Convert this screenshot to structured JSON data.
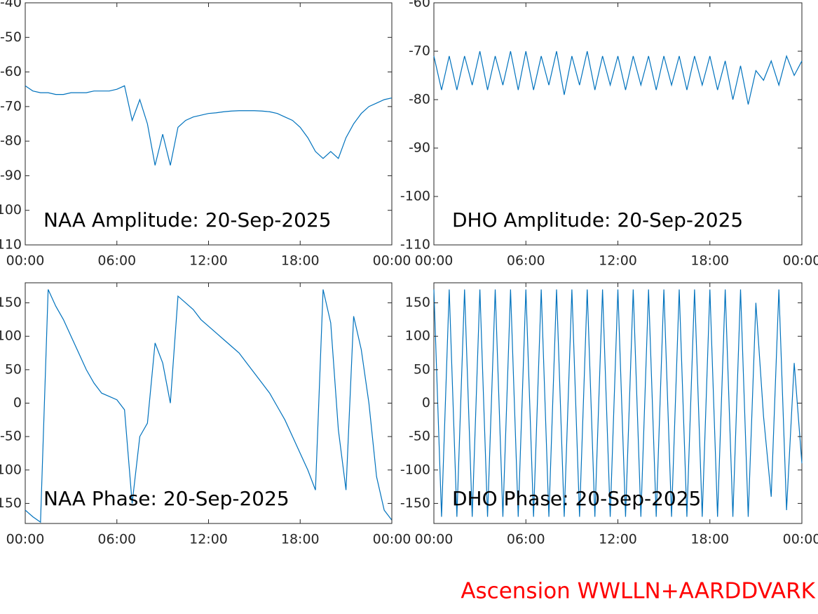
{
  "chart_data": [
    {
      "type": "line",
      "title": "NAA Amplitude: 20-Sep-2025",
      "color": "#0072bd",
      "x": [
        0,
        0.5,
        1,
        1.5,
        2,
        2.5,
        3,
        3.5,
        4,
        4.5,
        5,
        5.5,
        6,
        6.5,
        7,
        7.5,
        8,
        8.5,
        9,
        9.5,
        10,
        10.5,
        11,
        11.5,
        12,
        12.5,
        13,
        13.5,
        14,
        14.5,
        15,
        15.5,
        16,
        16.5,
        17,
        17.5,
        18,
        18.5,
        19,
        19.5,
        20,
        20.5,
        21,
        21.5,
        22,
        22.5,
        23,
        23.5,
        24
      ],
      "values": [
        -64,
        -65.5,
        -66,
        -66,
        -66.5,
        -66.5,
        -66,
        -66,
        -66,
        -65.5,
        -65.5,
        -65.5,
        -65,
        -64,
        -74,
        -68,
        -75,
        -87,
        -78,
        -87,
        -76,
        -74,
        -73,
        -72.5,
        -72,
        -71.8,
        -71.5,
        -71.3,
        -71.2,
        -71.2,
        -71.2,
        -71.3,
        -71.5,
        -72,
        -73,
        -74,
        -76,
        -79,
        -83,
        -85,
        -83,
        -85,
        -79,
        -75,
        -72,
        -70,
        -69,
        -68,
        -67.5
      ],
      "xlim": [
        0,
        24
      ],
      "xticks": [
        {
          "value": 0,
          "label": "00:00"
        },
        {
          "value": 6,
          "label": "06:00"
        },
        {
          "value": 12,
          "label": "12:00"
        },
        {
          "value": 18,
          "label": "18:00"
        },
        {
          "value": 24,
          "label": "00:00"
        }
      ],
      "ylim": [
        -110,
        -40
      ],
      "yticks": [
        -40,
        -50,
        -60,
        -70,
        -80,
        -90,
        -100,
        -110
      ]
    },
    {
      "type": "line",
      "title": "DHO Amplitude: 20-Sep-2025",
      "color": "#0072bd",
      "x": [
        0,
        0.5,
        1,
        1.5,
        2,
        2.5,
        3,
        3.5,
        4,
        4.5,
        5,
        5.5,
        6,
        6.5,
        7,
        7.5,
        8,
        8.5,
        9,
        9.5,
        10,
        10.5,
        11,
        11.5,
        12,
        12.5,
        13,
        13.5,
        14,
        14.5,
        15,
        15.5,
        16,
        16.5,
        17,
        17.5,
        18,
        18.5,
        19,
        19.5,
        20,
        20.5,
        21,
        21.5,
        22,
        22.5,
        23,
        23.5,
        24
      ],
      "values": [
        -71,
        -78,
        -71,
        -78,
        -71,
        -77,
        -70,
        -78,
        -71,
        -77,
        -70,
        -78,
        -70,
        -78,
        -71,
        -77,
        -70,
        -79,
        -71,
        -77,
        -70,
        -78,
        -71,
        -77,
        -71,
        -78,
        -71,
        -77,
        -71,
        -78,
        -71,
        -77,
        -71,
        -78,
        -71,
        -77,
        -71,
        -78,
        -72,
        -80,
        -73,
        -81,
        -74,
        -76,
        -72,
        -77,
        -71,
        -75,
        -72
      ],
      "xlim": [
        0,
        24
      ],
      "xticks": [
        {
          "value": 0,
          "label": "00:00"
        },
        {
          "value": 6,
          "label": "06:00"
        },
        {
          "value": 12,
          "label": "12:00"
        },
        {
          "value": 18,
          "label": "18:00"
        },
        {
          "value": 24,
          "label": "00:00"
        }
      ],
      "ylim": [
        -110,
        -60
      ],
      "yticks": [
        -60,
        -70,
        -80,
        -90,
        -100,
        -110
      ]
    },
    {
      "type": "line",
      "title": "NAA Phase: 20-Sep-2025",
      "color": "#0072bd",
      "x": [
        0,
        0.5,
        1,
        1.5,
        2,
        2.5,
        3,
        3.5,
        4,
        4.5,
        5,
        5.5,
        6,
        6.5,
        7,
        7.5,
        8,
        8.5,
        9,
        9.5,
        10,
        10.5,
        11,
        11.5,
        12,
        12.5,
        13,
        13.5,
        14,
        14.5,
        15,
        15.5,
        16,
        16.5,
        17,
        17.5,
        18,
        18.5,
        19,
        19.5,
        20,
        20.5,
        21,
        21.5,
        22,
        22.5,
        23,
        23.5,
        24
      ],
      "values": [
        -160,
        -170,
        -178,
        170,
        145,
        125,
        100,
        75,
        50,
        30,
        15,
        10,
        5,
        -10,
        -150,
        -50,
        -30,
        90,
        60,
        0,
        160,
        150,
        140,
        125,
        115,
        105,
        95,
        85,
        75,
        60,
        45,
        30,
        15,
        -5,
        -25,
        -50,
        -75,
        -100,
        -130,
        170,
        120,
        -40,
        -130,
        130,
        80,
        0,
        -110,
        -160,
        -175
      ],
      "xlim": [
        0,
        24
      ],
      "xticks": [
        {
          "value": 0,
          "label": "00:00"
        },
        {
          "value": 6,
          "label": "06:00"
        },
        {
          "value": 12,
          "label": "12:00"
        },
        {
          "value": 18,
          "label": "18:00"
        },
        {
          "value": 24,
          "label": "00:00"
        }
      ],
      "ylim": [
        -180,
        180
      ],
      "yticks": [
        150,
        100,
        50,
        0,
        -50,
        -100,
        -150
      ]
    },
    {
      "type": "line",
      "title": "DHO Phase: 20-Sep-2025",
      "color": "#0072bd",
      "x": [
        0,
        0.5,
        1,
        1.5,
        2,
        2.5,
        3,
        3.5,
        4,
        4.5,
        5,
        5.5,
        6,
        6.5,
        7,
        7.5,
        8,
        8.5,
        9,
        9.5,
        10,
        10.5,
        11,
        11.5,
        12,
        12.5,
        13,
        13.5,
        14,
        14.5,
        15,
        15.5,
        16,
        16.5,
        17,
        17.5,
        18,
        18.5,
        19,
        19.5,
        20,
        20.5,
        21,
        21.5,
        22,
        22.5,
        23,
        23.5,
        24
      ],
      "values": [
        170,
        -170,
        170,
        -170,
        170,
        -170,
        170,
        -170,
        170,
        -170,
        170,
        -170,
        170,
        -170,
        170,
        -170,
        170,
        -170,
        170,
        -170,
        170,
        -170,
        170,
        -170,
        170,
        -170,
        170,
        -170,
        170,
        -170,
        170,
        -170,
        170,
        -170,
        170,
        -170,
        170,
        -170,
        170,
        -170,
        170,
        -170,
        150,
        -20,
        -140,
        170,
        -160,
        60,
        -90
      ],
      "xlim": [
        0,
        24
      ],
      "xticks": [
        {
          "value": 0,
          "label": "00:00"
        },
        {
          "value": 6,
          "label": "06:00"
        },
        {
          "value": 12,
          "label": "12:00"
        },
        {
          "value": 18,
          "label": "18:00"
        },
        {
          "value": 24,
          "label": "00:00"
        }
      ],
      "ylim": [
        -180,
        180
      ],
      "yticks": [
        150,
        100,
        50,
        0,
        -50,
        -100,
        -150
      ]
    }
  ],
  "footer": "Ascension WWLLN+AARDDVARK"
}
